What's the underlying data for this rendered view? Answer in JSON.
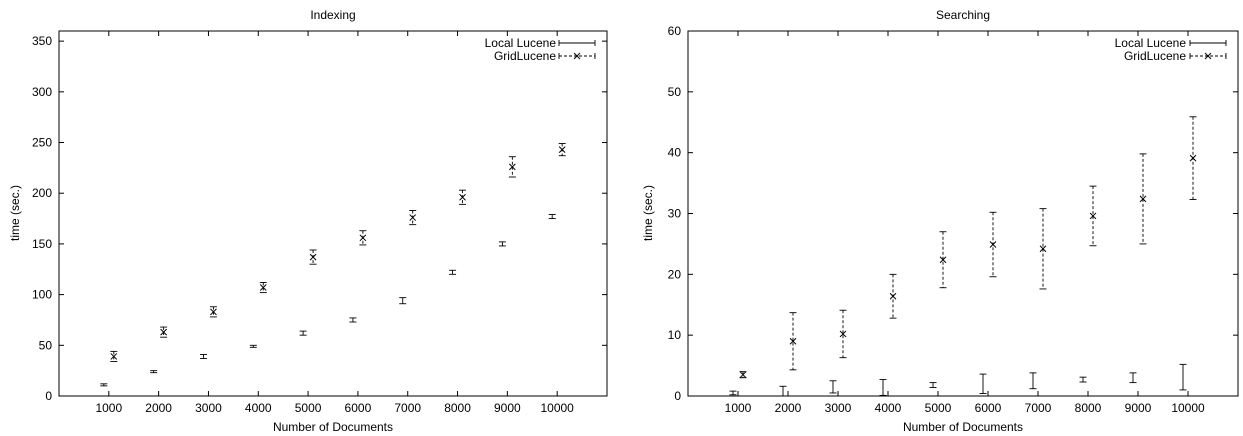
{
  "chart_data": [
    {
      "type": "scatter",
      "title": "Indexing",
      "xlabel": "Number of Documents",
      "ylabel": "time (sec.)",
      "xlim": [
        0,
        11000
      ],
      "ylim": [
        0,
        360
      ],
      "xticks": [
        1000,
        2000,
        3000,
        4000,
        5000,
        6000,
        7000,
        8000,
        9000,
        10000
      ],
      "yticks": [
        0,
        50,
        100,
        150,
        200,
        250,
        300,
        350
      ],
      "legend_position": "top-right",
      "grid": false,
      "series": [
        {
          "name": "Local Lucene",
          "style": "errorbar",
          "x": [
            900,
            1900,
            2900,
            3900,
            4900,
            5900,
            6900,
            7900,
            8900,
            9900
          ],
          "y": [
            11,
            24,
            39,
            49,
            62,
            75,
            94,
            122,
            150,
            177
          ],
          "yerr": [
            1,
            1,
            2,
            1,
            2,
            2,
            3,
            2,
            2,
            2
          ]
        },
        {
          "name": "GridLucene",
          "style": "errorbar-x",
          "x": [
            1100,
            2100,
            3100,
            4100,
            5100,
            6100,
            7100,
            8100,
            9100,
            10100
          ],
          "y": [
            39,
            63,
            83,
            107,
            137,
            156,
            176,
            196,
            226,
            243
          ],
          "yerr": [
            5,
            5,
            5,
            5,
            7,
            7,
            7,
            7,
            10,
            6
          ]
        }
      ]
    },
    {
      "type": "scatter",
      "title": "Searching",
      "xlabel": "Number of Documents",
      "ylabel": "time (sec.)",
      "xlim": [
        0,
        11000
      ],
      "ylim": [
        0,
        60
      ],
      "xticks": [
        1000,
        2000,
        3000,
        4000,
        5000,
        6000,
        7000,
        8000,
        9000,
        10000
      ],
      "yticks": [
        0,
        10,
        20,
        30,
        40,
        50,
        60
      ],
      "legend_position": "top-right",
      "grid": false,
      "series": [
        {
          "name": "Local Lucene",
          "style": "errorbar",
          "x": [
            900,
            1900,
            2900,
            3900,
            4900,
            5900,
            6900,
            7900,
            8900,
            9900
          ],
          "y": [
            0.5,
            0.8,
            1.5,
            1.4,
            1.8,
            2.0,
            2.5,
            2.7,
            3.0,
            3.1
          ],
          "yerr": [
            0.3,
            0.8,
            1.0,
            1.3,
            0.4,
            1.6,
            1.3,
            0.4,
            0.8,
            2.1
          ]
        },
        {
          "name": "GridLucene",
          "style": "errorbar-x",
          "x": [
            1100,
            2100,
            3100,
            4100,
            5100,
            6100,
            7100,
            8100,
            9100,
            10100
          ],
          "y": [
            3.5,
            9,
            10.2,
            16.4,
            22.4,
            24.9,
            24.2,
            29.6,
            32.4,
            39.1
          ],
          "yerr": [
            0.5,
            4.7,
            3.9,
            3.6,
            4.6,
            5.3,
            6.6,
            4.9,
            7.4,
            6.8
          ]
        }
      ]
    }
  ]
}
